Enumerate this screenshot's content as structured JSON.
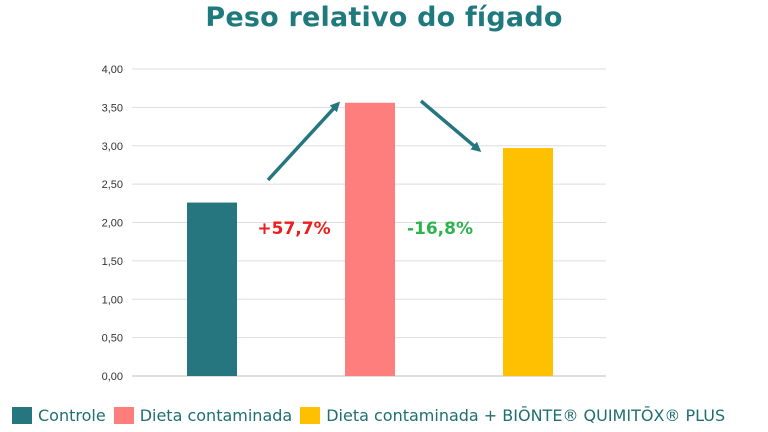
{
  "chart_data": {
    "type": "bar",
    "title": "Peso relativo do fígado",
    "categories": [
      "Controle",
      "Dieta contaminada",
      "Dieta contaminada + BIŌNTE® QUIMITŌX® PLUS"
    ],
    "values": [
      2.26,
      3.56,
      2.97
    ],
    "colors": [
      "#267680",
      "#fe7e7e",
      "#ffc001"
    ],
    "ylim": [
      0,
      4
    ],
    "yticks": [
      "0,00",
      "0,50",
      "1,00",
      "1,50",
      "2,00",
      "2,50",
      "3,00",
      "3,50",
      "4,00"
    ],
    "grid": true,
    "legend_position": "bottom",
    "annotations": [
      {
        "text": "+57,7%",
        "color": "#ee1c1c"
      },
      {
        "text": "-16,8%",
        "color": "#2db34d"
      }
    ],
    "arrow_color": "#267680"
  }
}
